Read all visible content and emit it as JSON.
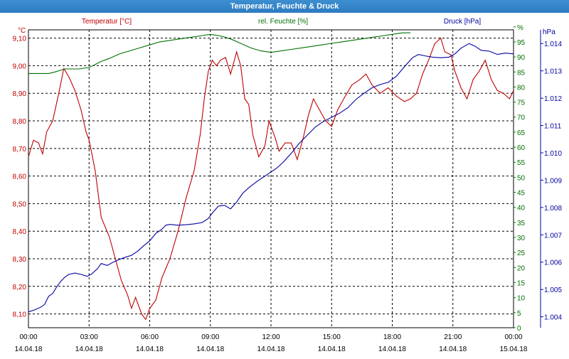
{
  "window": {
    "title": "Temperatur, Feuchte & Druck"
  },
  "colors": {
    "temperature": "#c00000",
    "humidity": "#007000",
    "pressure": "#0000a0",
    "grid": "#000000"
  },
  "chart_data": {
    "type": "line",
    "title": "Temperatur, Feuchte & Druck",
    "grid": true,
    "x_ticks": [
      {
        "time": "00:00",
        "date": "14.04.18",
        "hour": 0
      },
      {
        "time": "03:00",
        "date": "14.04.18",
        "hour": 3
      },
      {
        "time": "06:00",
        "date": "14.04.18",
        "hour": 6
      },
      {
        "time": "09:00",
        "date": "14.04.18",
        "hour": 9
      },
      {
        "time": "12:00",
        "date": "14.04.18",
        "hour": 12
      },
      {
        "time": "15:00",
        "date": "14.04.18",
        "hour": 15
      },
      {
        "time": "18:00",
        "date": "14.04.18",
        "hour": 18
      },
      {
        "time": "21:00",
        "date": "14.04.18",
        "hour": 21
      },
      {
        "time": "00:00",
        "date": "15.04.18",
        "hour": 24
      }
    ],
    "axes": {
      "temperature": {
        "label": "Temperatur [°C]",
        "unit": "°C",
        "ylim": [
          8.05,
          9.13
        ],
        "ticks": [
          "8,10",
          "8,20",
          "8,30",
          "8,40",
          "8,50",
          "8,60",
          "8,70",
          "8,80",
          "8,90",
          "9,00",
          "9,10"
        ]
      },
      "humidity": {
        "label": "rel. Feuchte [%]",
        "unit": "%",
        "ylim": [
          0,
          99
        ],
        "ticks": [
          "0",
          "5",
          "10",
          "15",
          "20",
          "25",
          "30",
          "35",
          "40",
          "45",
          "50",
          "55",
          "60",
          "65",
          "70",
          "75",
          "80",
          "85",
          "90",
          "95",
          "%"
        ]
      },
      "pressure": {
        "label": "Druck [hPa]",
        "unit": "hPa",
        "ylim": [
          1.0036,
          1.0145
        ],
        "ticks": [
          "1.004",
          "1.005",
          "1.006",
          "1.007",
          "1.008",
          "1.009",
          "1.010",
          "1.011",
          "1.012",
          "1.013",
          "1.014"
        ]
      }
    },
    "series": [
      {
        "name": "Temperatur [°C]",
        "axis": "temperature",
        "points": [
          [
            0,
            8.67
          ],
          [
            0.25,
            8.73
          ],
          [
            0.5,
            8.72
          ],
          [
            0.7,
            8.68
          ],
          [
            0.9,
            8.76
          ],
          [
            1.2,
            8.8
          ],
          [
            1.5,
            8.9
          ],
          [
            1.75,
            8.99
          ],
          [
            2.0,
            8.96
          ],
          [
            2.3,
            8.91
          ],
          [
            2.6,
            8.84
          ],
          [
            2.85,
            8.76
          ],
          [
            3.0,
            8.73
          ],
          [
            3.3,
            8.62
          ],
          [
            3.6,
            8.45
          ],
          [
            4.0,
            8.38
          ],
          [
            4.3,
            8.3
          ],
          [
            4.6,
            8.22
          ],
          [
            4.9,
            8.17
          ],
          [
            5.1,
            8.12
          ],
          [
            5.3,
            8.16
          ],
          [
            5.6,
            8.1
          ],
          [
            5.8,
            8.08
          ],
          [
            6.0,
            8.12
          ],
          [
            6.3,
            8.15
          ],
          [
            6.6,
            8.23
          ],
          [
            7.0,
            8.3
          ],
          [
            7.4,
            8.4
          ],
          [
            7.8,
            8.52
          ],
          [
            8.2,
            8.62
          ],
          [
            8.5,
            8.75
          ],
          [
            8.7,
            8.88
          ],
          [
            8.9,
            8.98
          ],
          [
            9.1,
            9.02
          ],
          [
            9.3,
            9.0
          ],
          [
            9.5,
            9.02
          ],
          [
            9.75,
            9.03
          ],
          [
            10.0,
            8.97
          ],
          [
            10.3,
            9.05
          ],
          [
            10.5,
            9.0
          ],
          [
            10.7,
            8.88
          ],
          [
            10.9,
            8.86
          ],
          [
            11.1,
            8.75
          ],
          [
            11.4,
            8.67
          ],
          [
            11.7,
            8.71
          ],
          [
            11.9,
            8.8
          ],
          [
            12.2,
            8.74
          ],
          [
            12.4,
            8.69
          ],
          [
            12.7,
            8.72
          ],
          [
            13.0,
            8.72
          ],
          [
            13.3,
            8.66
          ],
          [
            13.6,
            8.74
          ],
          [
            13.85,
            8.82
          ],
          [
            14.1,
            8.88
          ],
          [
            14.4,
            8.84
          ],
          [
            14.7,
            8.8
          ],
          [
            15.0,
            8.78
          ],
          [
            15.3,
            8.84
          ],
          [
            15.6,
            8.88
          ],
          [
            16.0,
            8.93
          ],
          [
            16.4,
            8.95
          ],
          [
            16.7,
            8.97
          ],
          [
            17.0,
            8.93
          ],
          [
            17.4,
            8.9
          ],
          [
            17.8,
            8.92
          ],
          [
            18.2,
            8.89
          ],
          [
            18.6,
            8.87
          ],
          [
            18.9,
            8.88
          ],
          [
            19.2,
            8.9
          ],
          [
            19.5,
            8.97
          ],
          [
            19.8,
            9.02
          ],
          [
            20.1,
            9.08
          ],
          [
            20.4,
            9.1
          ],
          [
            20.6,
            9.05
          ],
          [
            20.9,
            9.04
          ],
          [
            21.1,
            8.98
          ],
          [
            21.4,
            8.92
          ],
          [
            21.7,
            8.88
          ],
          [
            22.0,
            8.95
          ],
          [
            22.3,
            8.98
          ],
          [
            22.6,
            9.02
          ],
          [
            22.9,
            8.95
          ],
          [
            23.2,
            8.91
          ],
          [
            23.5,
            8.9
          ],
          [
            23.8,
            8.88
          ],
          [
            24.0,
            8.91
          ]
        ]
      },
      {
        "name": "rel. Feuchte [%]",
        "axis": "humidity",
        "points": [
          [
            0,
            84.5
          ],
          [
            0.5,
            84.5
          ],
          [
            1.0,
            84.5
          ],
          [
            1.3,
            85.0
          ],
          [
            1.8,
            86.0
          ],
          [
            2.5,
            86.0
          ],
          [
            3.0,
            86.5
          ],
          [
            3.3,
            87.5
          ],
          [
            3.6,
            88.5
          ],
          [
            4.0,
            89.5
          ],
          [
            4.5,
            91.0
          ],
          [
            5.0,
            92.0
          ],
          [
            5.5,
            93.0
          ],
          [
            6.0,
            94.0
          ],
          [
            6.5,
            95.0
          ],
          [
            7.0,
            95.5
          ],
          [
            7.5,
            96.0
          ],
          [
            8.0,
            96.5
          ],
          [
            8.5,
            97.0
          ],
          [
            9.0,
            97.5
          ],
          [
            9.5,
            97.0
          ],
          [
            10.0,
            96.0
          ],
          [
            10.5,
            94.5
          ],
          [
            11.0,
            93.0
          ],
          [
            11.5,
            92.0
          ],
          [
            12.0,
            91.5
          ],
          [
            12.5,
            92.0
          ],
          [
            13.0,
            92.5
          ],
          [
            13.5,
            93.0
          ],
          [
            14.0,
            93.5
          ],
          [
            14.5,
            94.0
          ],
          [
            15.0,
            94.5
          ],
          [
            15.5,
            95.0
          ],
          [
            16.0,
            95.5
          ],
          [
            16.5,
            96.0
          ],
          [
            17.0,
            96.5
          ],
          [
            17.5,
            97.0
          ],
          [
            18.0,
            97.5
          ],
          [
            18.5,
            98.0
          ],
          [
            18.9,
            98.0
          ]
        ]
      },
      {
        "name": "Druck [hPa]",
        "axis": "pressure",
        "points": [
          [
            0,
            1.00418
          ],
          [
            0.3,
            1.00425
          ],
          [
            0.6,
            1.00435
          ],
          [
            0.8,
            1.00445
          ],
          [
            1.0,
            1.00475
          ],
          [
            1.2,
            1.00485
          ],
          [
            1.4,
            1.0051
          ],
          [
            1.6,
            1.0053
          ],
          [
            1.8,
            1.00545
          ],
          [
            2.0,
            1.00555
          ],
          [
            2.3,
            1.0056
          ],
          [
            2.6,
            1.00555
          ],
          [
            2.9,
            1.00548
          ],
          [
            3.1,
            1.00555
          ],
          [
            3.4,
            1.00575
          ],
          [
            3.6,
            1.00595
          ],
          [
            3.9,
            1.00588
          ],
          [
            4.2,
            1.006
          ],
          [
            4.5,
            1.0061
          ],
          [
            4.8,
            1.00618
          ],
          [
            5.1,
            1.00625
          ],
          [
            5.4,
            1.0064
          ],
          [
            5.7,
            1.0066
          ],
          [
            6.0,
            1.00678
          ],
          [
            6.3,
            1.00705
          ],
          [
            6.6,
            1.0072
          ],
          [
            6.8,
            1.00735
          ],
          [
            7.0,
            1.00738
          ],
          [
            7.4,
            1.00735
          ],
          [
            7.8,
            1.00737
          ],
          [
            8.2,
            1.0074
          ],
          [
            8.6,
            1.00745
          ],
          [
            8.9,
            1.0076
          ],
          [
            9.1,
            1.0078
          ],
          [
            9.4,
            1.00805
          ],
          [
            9.7,
            1.00808
          ],
          [
            10.0,
            1.00795
          ],
          [
            10.3,
            1.0082
          ],
          [
            10.6,
            1.00852
          ],
          [
            10.9,
            1.00872
          ],
          [
            11.3,
            1.00895
          ],
          [
            11.7,
            1.00915
          ],
          [
            12.0,
            1.0093
          ],
          [
            12.3,
            1.00945
          ],
          [
            12.6,
            1.00965
          ],
          [
            13.0,
            1.00998
          ],
          [
            13.4,
            1.01035
          ],
          [
            13.8,
            1.01065
          ],
          [
            14.2,
            1.01095
          ],
          [
            14.6,
            1.01115
          ],
          [
            15.0,
            1.0113
          ],
          [
            15.4,
            1.01145
          ],
          [
            15.8,
            1.01165
          ],
          [
            16.2,
            1.01195
          ],
          [
            16.6,
            1.01218
          ],
          [
            17.0,
            1.01238
          ],
          [
            17.4,
            1.0125
          ],
          [
            17.8,
            1.01258
          ],
          [
            18.2,
            1.0128
          ],
          [
            18.6,
            1.01315
          ],
          [
            19.0,
            1.01348
          ],
          [
            19.3,
            1.0136
          ],
          [
            19.6,
            1.01355
          ],
          [
            20.0,
            1.0135
          ],
          [
            20.4,
            1.01348
          ],
          [
            20.8,
            1.0135
          ],
          [
            21.1,
            1.01362
          ],
          [
            21.4,
            1.01383
          ],
          [
            21.8,
            1.014
          ],
          [
            22.1,
            1.0139
          ],
          [
            22.4,
            1.01375
          ],
          [
            22.8,
            1.01372
          ],
          [
            23.2,
            1.0136
          ],
          [
            23.6,
            1.01365
          ],
          [
            24.0,
            1.01362
          ]
        ]
      }
    ]
  }
}
